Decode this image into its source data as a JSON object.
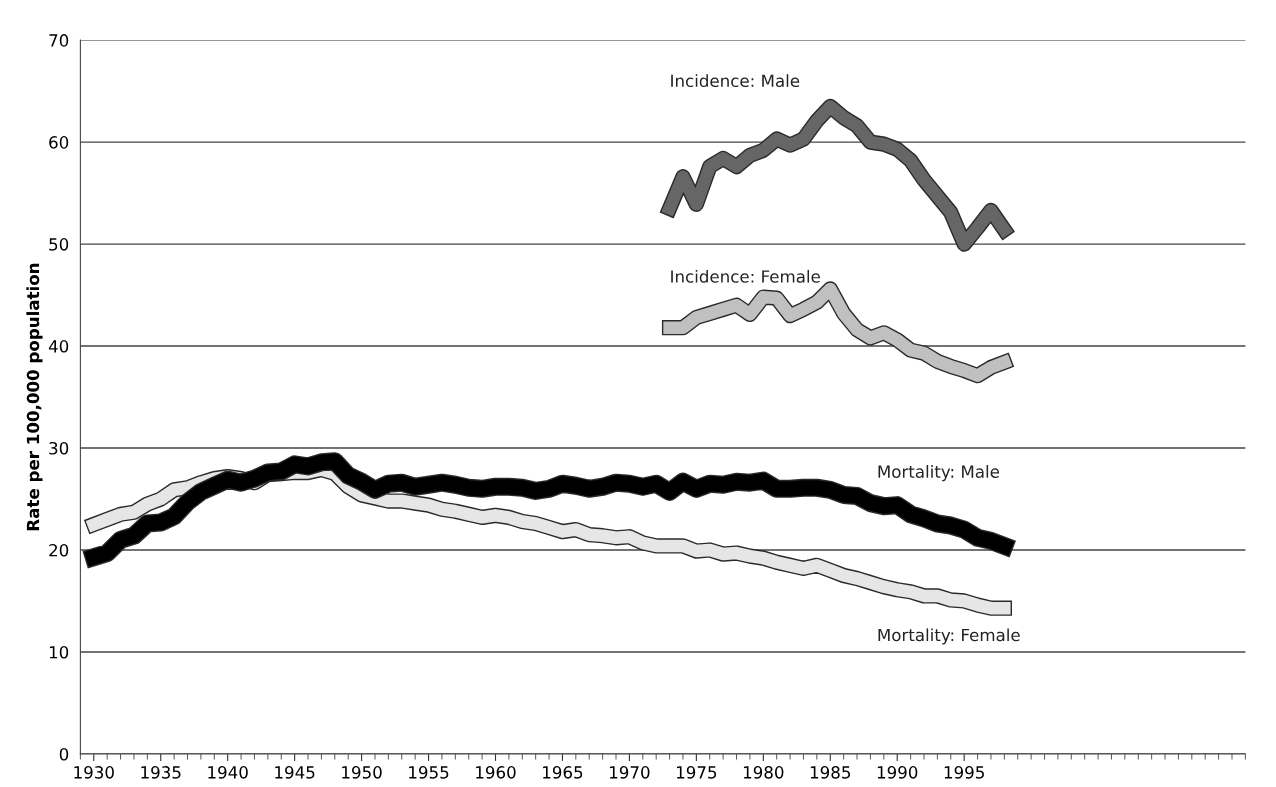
{
  "chart_data": {
    "type": "line",
    "ylabel": "Rate per 100,000 population",
    "xlim": [
      1929,
      2016
    ],
    "xticks": [
      1930,
      1935,
      1940,
      1945,
      1950,
      1955,
      1960,
      1965,
      1970,
      1975,
      1980,
      1985,
      1990,
      1995
    ],
    "ylim": [
      0,
      70
    ],
    "yticks": [
      0,
      10,
      20,
      30,
      40,
      50,
      60,
      70
    ],
    "grid": "y",
    "legend": false,
    "marker": "none",
    "line_style": "solid",
    "series": [
      {
        "name": "Incidence: Male",
        "color": "#666666",
        "x": [
          1973,
          1974,
          1975,
          1976,
          1977,
          1978,
          1979,
          1980,
          1981,
          1982,
          1983,
          1984,
          1985,
          1986,
          1987,
          1988,
          1989,
          1990,
          1991,
          1992,
          1993,
          1994,
          1995,
          1996,
          1997,
          1998
        ],
        "values": [
          53.5,
          56.6,
          53.9,
          57.6,
          58.4,
          57.6,
          58.7,
          59.2,
          60.3,
          59.7,
          60.3,
          62.1,
          63.5,
          62.4,
          61.6,
          60.0,
          59.8,
          59.3,
          58.2,
          56.3,
          54.7,
          53.1,
          50.0,
          51.6,
          53.3,
          51.4
        ]
      },
      {
        "name": "Incidence: Female",
        "color": "#c0c0c0",
        "x": [
          1973,
          1974,
          1975,
          1976,
          1977,
          1978,
          1979,
          1980,
          1981,
          1982,
          1983,
          1984,
          1985,
          1986,
          1987,
          1988,
          1989,
          1990,
          1991,
          1992,
          1993,
          1994,
          1995,
          1996,
          1997,
          1998
        ],
        "values": [
          41.8,
          41.8,
          42.8,
          43.2,
          43.6,
          44.0,
          43.1,
          44.8,
          44.7,
          43.0,
          43.6,
          44.3,
          45.6,
          43.2,
          41.6,
          40.8,
          41.3,
          40.6,
          39.6,
          39.3,
          38.5,
          38.0,
          37.6,
          37.1,
          37.9,
          38.4
        ]
      },
      {
        "name": "Mortality: Female",
        "color": "#e6e6e6",
        "x": [
          1930,
          1931,
          1932,
          1933,
          1934,
          1935,
          1936,
          1937,
          1938,
          1939,
          1940,
          1941,
          1942,
          1943,
          1944,
          1945,
          1946,
          1947,
          1948,
          1949,
          1950,
          1951,
          1952,
          1953,
          1954,
          1955,
          1956,
          1957,
          1958,
          1959,
          1960,
          1961,
          1962,
          1963,
          1964,
          1965,
          1966,
          1967,
          1968,
          1969,
          1970,
          1971,
          1972,
          1973,
          1974,
          1975,
          1976,
          1977,
          1978,
          1979,
          1980,
          1981,
          1982,
          1983,
          1984,
          1985,
          1986,
          1987,
          1988,
          1989,
          1990,
          1991,
          1992,
          1993,
          1994,
          1995,
          1996,
          1997,
          1998
        ],
        "values": [
          22.5,
          23.0,
          23.5,
          23.7,
          24.5,
          25.0,
          25.9,
          26.1,
          26.6,
          27.0,
          27.2,
          27.0,
          26.6,
          27.4,
          27.5,
          27.6,
          27.6,
          27.9,
          27.5,
          26.2,
          25.4,
          25.1,
          24.8,
          24.8,
          24.6,
          24.4,
          24.0,
          23.8,
          23.5,
          23.2,
          23.4,
          23.2,
          22.8,
          22.6,
          22.2,
          21.8,
          22.0,
          21.5,
          21.4,
          21.2,
          21.3,
          20.7,
          20.4,
          20.4,
          20.4,
          19.9,
          20.0,
          19.6,
          19.7,
          19.4,
          19.2,
          18.8,
          18.5,
          18.2,
          18.5,
          18.0,
          17.5,
          17.2,
          16.8,
          16.4,
          16.1,
          15.9,
          15.5,
          15.5,
          15.1,
          15.0,
          14.6,
          14.3,
          14.3
        ]
      },
      {
        "name": "Mortality: Male",
        "color": "#000000",
        "x": [
          1930,
          1931,
          1932,
          1933,
          1934,
          1935,
          1936,
          1937,
          1938,
          1939,
          1940,
          1941,
          1942,
          1943,
          1944,
          1945,
          1946,
          1947,
          1948,
          1949,
          1950,
          1951,
          1952,
          1953,
          1954,
          1955,
          1956,
          1957,
          1958,
          1959,
          1960,
          1961,
          1962,
          1963,
          1964,
          1965,
          1966,
          1967,
          1968,
          1969,
          1970,
          1971,
          1972,
          1973,
          1974,
          1975,
          1976,
          1977,
          1978,
          1979,
          1980,
          1981,
          1982,
          1983,
          1984,
          1985,
          1986,
          1987,
          1988,
          1989,
          1990,
          1991,
          1992,
          1993,
          1994,
          1995,
          1996,
          1997,
          1998
        ],
        "values": [
          19.3,
          19.7,
          21.0,
          21.4,
          22.6,
          22.7,
          23.3,
          24.7,
          25.7,
          26.3,
          26.9,
          26.6,
          27.0,
          27.6,
          27.7,
          28.4,
          28.2,
          28.6,
          28.7,
          27.3,
          26.7,
          25.9,
          26.5,
          26.6,
          26.2,
          26.4,
          26.6,
          26.4,
          26.1,
          26.0,
          26.2,
          26.2,
          26.1,
          25.8,
          26.0,
          26.5,
          26.3,
          26.0,
          26.2,
          26.6,
          26.5,
          26.2,
          26.5,
          25.7,
          26.7,
          26.0,
          26.5,
          26.4,
          26.7,
          26.6,
          26.8,
          26.0,
          26.0,
          26.1,
          26.1,
          25.9,
          25.4,
          25.3,
          24.6,
          24.3,
          24.4,
          23.5,
          23.1,
          22.6,
          22.4,
          22.0,
          21.2,
          20.9,
          20.4
        ]
      }
    ]
  }
}
